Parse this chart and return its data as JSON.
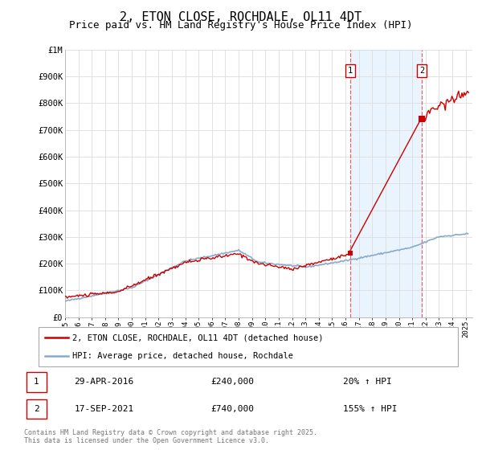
{
  "title": "2, ETON CLOSE, ROCHDALE, OL11 4DT",
  "subtitle": "Price paid vs. HM Land Registry's House Price Index (HPI)",
  "title_fontsize": 11,
  "subtitle_fontsize": 9,
  "background_color": "#ffffff",
  "plot_bg_color": "#ffffff",
  "grid_color": "#dddddd",
  "shade_color": "#ddeeff",
  "legend_label_red": "2, ETON CLOSE, ROCHDALE, OL11 4DT (detached house)",
  "legend_label_blue": "HPI: Average price, detached house, Rochdale",
  "footnote": "Contains HM Land Registry data © Crown copyright and database right 2025.\nThis data is licensed under the Open Government Licence v3.0.",
  "transaction1_label": "1",
  "transaction1_date": "29-APR-2016",
  "transaction1_price": "£240,000",
  "transaction1_hpi": "20% ↑ HPI",
  "transaction2_label": "2",
  "transaction2_date": "17-SEP-2021",
  "transaction2_price": "£740,000",
  "transaction2_hpi": "155% ↑ HPI",
  "red_color": "#cc0000",
  "blue_color": "#88aacc",
  "dashed_color": "#dd6666",
  "ylim": [
    0,
    1000000
  ],
  "xlim_start": 1995.0,
  "xlim_end": 2025.5,
  "vline1_x": 2016.33,
  "vline2_x": 2021.72,
  "marker1_y": 240000,
  "marker2_y": 740000
}
